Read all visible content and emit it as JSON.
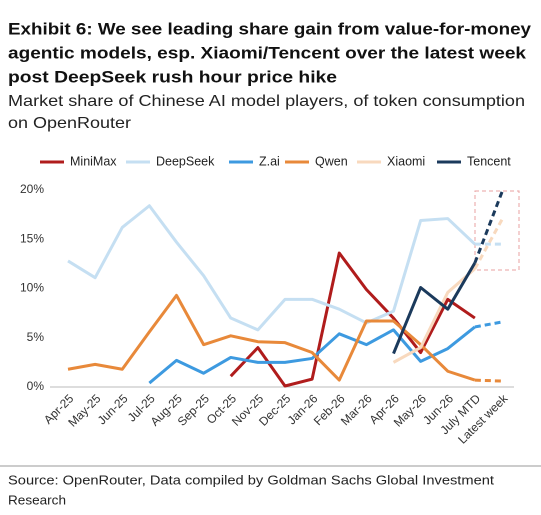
{
  "chart_data": {
    "type": "line",
    "title": [
      "Exhibit 6: We see leading share gain from value-for-money",
      "agentic models, esp. Xiaomi/Tencent over the latest week",
      "post DeepSeek rush hour price hike"
    ],
    "subtitle": [
      "Market share of Chinese AI model players, of token consumption",
      "on OpenRouter"
    ],
    "source": [
      "Source: OpenRouter, Data compiled by Goldman Sachs Global Investment",
      "Research"
    ],
    "categories": [
      "Apr-25",
      "May-25",
      "Jun-25",
      "Jul-25",
      "Aug-25",
      "Sep-25",
      "Oct-25",
      "Nov-25",
      "Dec-25",
      "Jan-26",
      "Feb-26",
      "Mar-26",
      "Apr-26",
      "May-26",
      "Jun-26",
      "July MTD",
      "Latest week"
    ],
    "series": [
      {
        "name": "MiniMax",
        "color": "#b01c1c",
        "values": [
          null,
          null,
          null,
          null,
          null,
          null,
          1.1,
          4.0,
          0.1,
          0.8,
          13.6,
          9.9,
          7.0,
          3.5,
          8.9,
          7.0,
          null
        ]
      },
      {
        "name": "DeepSeek",
        "color": "#c5dff2",
        "values": [
          12.8,
          11.1,
          16.2,
          18.4,
          14.7,
          11.3,
          7.0,
          5.8,
          8.9,
          8.9,
          7.9,
          6.5,
          7.7,
          16.9,
          17.1,
          14.5,
          14.5
        ]
      },
      {
        "name": "Z.ai",
        "color": "#3d9ae0",
        "values": [
          null,
          null,
          null,
          0.4,
          2.7,
          1.4,
          3.0,
          2.5,
          2.5,
          2.9,
          5.4,
          4.3,
          5.8,
          2.6,
          3.9,
          6.1,
          6.6
        ]
      },
      {
        "name": "Qwen",
        "color": "#e8893a",
        "values": [
          1.8,
          2.3,
          1.8,
          5.6,
          9.3,
          4.3,
          5.2,
          4.6,
          4.5,
          3.5,
          0.7,
          6.7,
          6.7,
          4.3,
          1.6,
          0.7,
          0.6
        ]
      },
      {
        "name": "Xiaomi",
        "color": "#f8d9be",
        "values": [
          null,
          null,
          null,
          null,
          null,
          null,
          null,
          null,
          null,
          null,
          null,
          null,
          2.5,
          4.0,
          9.6,
          12.0,
          17.0
        ]
      },
      {
        "name": "Tencent",
        "color": "#1b3a5c",
        "values": [
          null,
          null,
          null,
          null,
          null,
          null,
          null,
          null,
          null,
          null,
          null,
          null,
          3.4,
          10.1,
          7.9,
          12.6,
          19.8
        ]
      }
    ],
    "ylim": [
      0,
      20
    ],
    "yticks": [
      {
        "value": 0,
        "label": "0%"
      },
      {
        "value": 5,
        "label": "5%"
      },
      {
        "value": 10,
        "label": "10%"
      },
      {
        "value": 15,
        "label": "15%"
      },
      {
        "value": 20,
        "label": "20%"
      }
    ],
    "grid": false
  }
}
